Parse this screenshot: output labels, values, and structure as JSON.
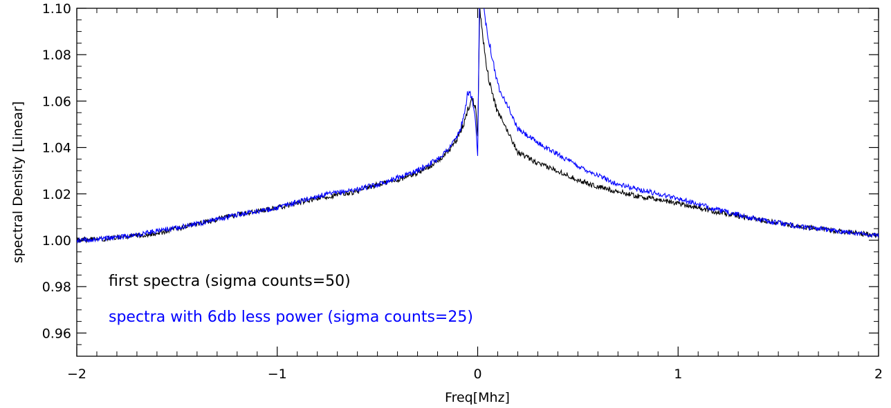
{
  "chart_data": {
    "type": "line",
    "title": "",
    "xlabel": "Freq[Mhz]",
    "ylabel": "spectral Density [Linear]",
    "xlim": [
      -2,
      2
    ],
    "ylim": [
      0.95,
      1.1
    ],
    "grid": false,
    "legend_placement": "bottom-left",
    "xticks": [
      {
        "value": -2,
        "label": "−2"
      },
      {
        "value": -1,
        "label": "−1"
      },
      {
        "value": 0,
        "label": "0"
      },
      {
        "value": 1,
        "label": "1"
      },
      {
        "value": 2,
        "label": "2"
      }
    ],
    "yticks": [
      {
        "value": 0.96,
        "label": "0.96"
      },
      {
        "value": 0.98,
        "label": "0.98"
      },
      {
        "value": 1.0,
        "label": "1.00"
      },
      {
        "value": 1.02,
        "label": "1.02"
      },
      {
        "value": 1.04,
        "label": "1.04"
      },
      {
        "value": 1.06,
        "label": "1.06"
      },
      {
        "value": 1.08,
        "label": "1.08"
      },
      {
        "value": 1.1,
        "label": "1.10"
      }
    ],
    "series": [
      {
        "name": "first spectra (sigma counts=50)",
        "color": "#000000",
        "x": [
          -2.0,
          -1.8,
          -1.6,
          -1.4,
          -1.2,
          -1.0,
          -0.8,
          -0.6,
          -0.5,
          -0.4,
          -0.3,
          -0.2,
          -0.15,
          -0.1,
          -0.07,
          -0.05,
          -0.03,
          -0.01,
          0.0,
          0.01,
          0.02,
          0.03,
          0.05,
          0.07,
          0.1,
          0.15,
          0.2,
          0.3,
          0.4,
          0.5,
          0.6,
          0.7,
          0.8,
          1.0,
          1.2,
          1.4,
          1.6,
          1.8,
          2.0
        ],
        "y": [
          1.0,
          1.001,
          1.003,
          1.007,
          1.011,
          1.014,
          1.018,
          1.021,
          1.024,
          1.026,
          1.029,
          1.034,
          1.038,
          1.044,
          1.05,
          1.056,
          1.061,
          1.058,
          1.045,
          1.1,
          1.092,
          1.085,
          1.072,
          1.064,
          1.055,
          1.047,
          1.038,
          1.033,
          1.03,
          1.026,
          1.023,
          1.021,
          1.019,
          1.016,
          1.012,
          1.009,
          1.006,
          1.004,
          1.002
        ]
      },
      {
        "name": "spectra with 6db less power (sigma counts=25)",
        "color": "#0000ff",
        "x": [
          -2.0,
          -1.8,
          -1.6,
          -1.4,
          -1.2,
          -1.0,
          -0.8,
          -0.6,
          -0.5,
          -0.4,
          -0.3,
          -0.2,
          -0.15,
          -0.1,
          -0.07,
          -0.05,
          -0.03,
          -0.01,
          0.0,
          0.01,
          0.02,
          0.03,
          0.05,
          0.07,
          0.1,
          0.15,
          0.2,
          0.3,
          0.4,
          0.5,
          0.6,
          0.7,
          0.8,
          1.0,
          1.2,
          1.4,
          1.6,
          1.8,
          2.0
        ],
        "y": [
          1.0,
          1.001,
          1.004,
          1.007,
          1.011,
          1.014,
          1.019,
          1.022,
          1.024,
          1.027,
          1.03,
          1.035,
          1.039,
          1.045,
          1.052,
          1.064,
          1.062,
          1.05,
          1.035,
          1.11,
          1.106,
          1.1,
          1.089,
          1.08,
          1.067,
          1.058,
          1.048,
          1.042,
          1.037,
          1.032,
          1.028,
          1.024,
          1.022,
          1.018,
          1.013,
          1.009,
          1.006,
          1.004,
          1.002
        ]
      }
    ]
  }
}
